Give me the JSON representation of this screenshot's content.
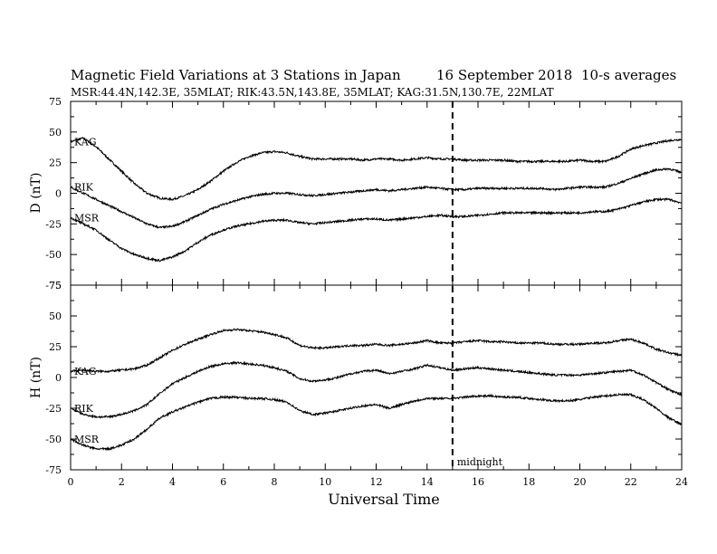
{
  "header": {
    "title": "Magnetic Field Variations at 3 Stations in Japan",
    "date": "16 September 2018",
    "averaging": "10-s averages",
    "stations_line": "MSR:44.4N,142.3E, 35MLAT;  RIK:43.5N,143.8E, 35MLAT;  KAG:31.5N,130.7E, 22MLAT"
  },
  "chart_data": [
    {
      "type": "line",
      "panel": "top",
      "ylabel": "D (nT)",
      "ylim": [
        -75,
        75
      ],
      "yticks": [
        "75",
        "50",
        "25",
        "0",
        "-25",
        "-50",
        "-75"
      ],
      "xlim": [
        0,
        24
      ],
      "x": [
        0,
        0.5,
        1,
        1.5,
        2,
        2.5,
        3,
        3.5,
        4,
        4.5,
        5,
        5.5,
        6,
        6.5,
        7,
        7.5,
        8,
        8.5,
        9,
        9.5,
        10,
        10.5,
        11,
        11.5,
        12,
        12.5,
        13,
        13.5,
        14,
        14.5,
        15,
        15.5,
        16,
        16.5,
        17,
        17.5,
        18,
        18.5,
        19,
        19.5,
        20,
        20.5,
        21,
        21.5,
        22,
        22.5,
        23,
        23.5,
        24
      ],
      "series": [
        {
          "name": "KAG",
          "values": [
            42,
            45,
            38,
            28,
            18,
            8,
            0,
            -4,
            -5,
            -2,
            3,
            10,
            18,
            25,
            30,
            33,
            34,
            33,
            30,
            28,
            28,
            28,
            28,
            27,
            28,
            28,
            27,
            28,
            29,
            28,
            28,
            27,
            27,
            27,
            27,
            26,
            26,
            26,
            26,
            26,
            27,
            26,
            26,
            30,
            36,
            39,
            41,
            43,
            44
          ]
        },
        {
          "name": "RIK",
          "values": [
            5,
            0,
            -5,
            -10,
            -15,
            -20,
            -25,
            -28,
            -27,
            -23,
            -18,
            -13,
            -9,
            -6,
            -3,
            -1,
            0,
            0,
            -1,
            -2,
            -1,
            0,
            1,
            2,
            3,
            2,
            3,
            4,
            5,
            4,
            3,
            3,
            4,
            4,
            4,
            4,
            4,
            4,
            3,
            4,
            5,
            5,
            5,
            8,
            12,
            16,
            19,
            20,
            17
          ]
        },
        {
          "name": "MSR",
          "values": [
            -20,
            -25,
            -30,
            -38,
            -45,
            -50,
            -53,
            -55,
            -52,
            -47,
            -40,
            -34,
            -30,
            -27,
            -25,
            -23,
            -22,
            -22,
            -24,
            -25,
            -24,
            -23,
            -22,
            -21,
            -21,
            -22,
            -21,
            -20,
            -19,
            -18,
            -19,
            -19,
            -18,
            -17,
            -16,
            -16,
            -16,
            -16,
            -16,
            -16,
            -16,
            -15,
            -15,
            -13,
            -10,
            -7,
            -5,
            -5,
            -8
          ]
        }
      ]
    },
    {
      "type": "line",
      "panel": "bottom",
      "ylabel": "H (nT)",
      "xlabel": "Universal Time",
      "ylim": [
        -75,
        75
      ],
      "yticks": [
        "75",
        "50",
        "25",
        "0",
        "-25",
        "-50",
        "-75"
      ],
      "xlim": [
        0,
        24
      ],
      "xticks": [
        "0",
        "2",
        "4",
        "6",
        "8",
        "10",
        "12",
        "14",
        "16",
        "18",
        "20",
        "22",
        "24"
      ],
      "vline": {
        "x": 15,
        "label": "midnight"
      },
      "x": [
        0,
        0.5,
        1,
        1.5,
        2,
        2.5,
        3,
        3.5,
        4,
        4.5,
        5,
        5.5,
        6,
        6.5,
        7,
        7.5,
        8,
        8.5,
        9,
        9.5,
        10,
        10.5,
        11,
        11.5,
        12,
        12.5,
        13,
        13.5,
        14,
        14.5,
        15,
        15.5,
        16,
        16.5,
        17,
        17.5,
        18,
        18.5,
        19,
        19.5,
        20,
        20.5,
        21,
        21.5,
        22,
        22.5,
        23,
        23.5,
        24
      ],
      "series": [
        {
          "name": "KAG",
          "values": [
            5,
            6,
            5,
            5,
            6,
            7,
            10,
            16,
            22,
            27,
            31,
            35,
            38,
            39,
            38,
            37,
            35,
            32,
            26,
            24,
            24,
            25,
            26,
            26,
            27,
            26,
            27,
            28,
            30,
            28,
            28,
            29,
            30,
            29,
            29,
            28,
            28,
            28,
            27,
            27,
            27,
            28,
            28,
            30,
            31,
            28,
            23,
            20,
            18
          ]
        },
        {
          "name": "RIK",
          "values": [
            -25,
            -30,
            -32,
            -32,
            -30,
            -27,
            -22,
            -13,
            -5,
            0,
            5,
            9,
            11,
            12,
            11,
            10,
            8,
            5,
            -1,
            -3,
            -2,
            0,
            3,
            5,
            6,
            3,
            5,
            7,
            10,
            8,
            6,
            7,
            8,
            7,
            6,
            5,
            4,
            3,
            2,
            2,
            2,
            3,
            4,
            5,
            6,
            2,
            -4,
            -10,
            -14
          ]
        },
        {
          "name": "MSR",
          "values": [
            -50,
            -55,
            -58,
            -58,
            -55,
            -50,
            -42,
            -33,
            -28,
            -24,
            -20,
            -17,
            -16,
            -16,
            -17,
            -17,
            -18,
            -20,
            -27,
            -30,
            -29,
            -27,
            -25,
            -23,
            -22,
            -25,
            -22,
            -19,
            -17,
            -17,
            -17,
            -16,
            -15,
            -15,
            -16,
            -16,
            -17,
            -18,
            -19,
            -19,
            -18,
            -16,
            -15,
            -14,
            -14,
            -18,
            -25,
            -33,
            -38
          ]
        }
      ]
    }
  ]
}
